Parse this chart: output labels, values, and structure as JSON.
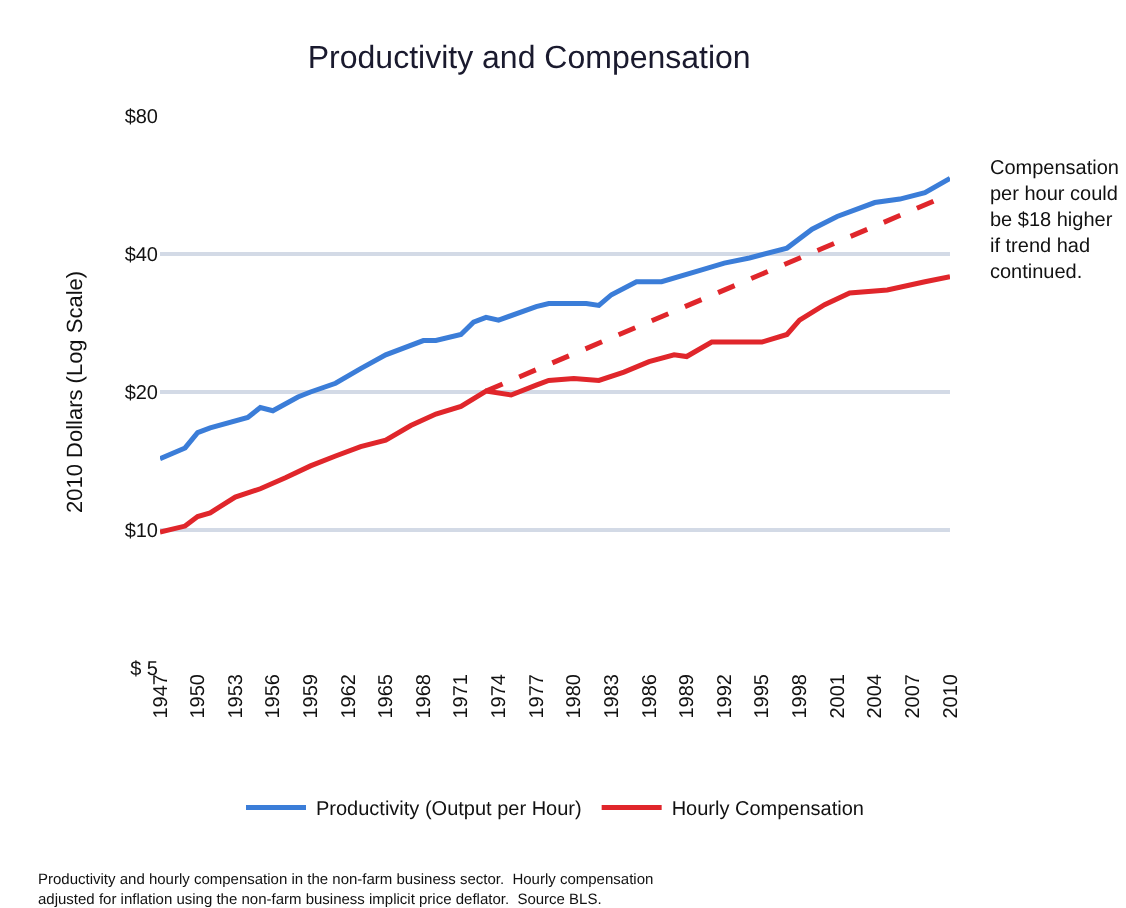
{
  "chart_data": {
    "type": "line",
    "title": "Productivity and Compensation",
    "ylabel": "2010 Dollars (Log Scale)",
    "log": "y",
    "grid": "y",
    "legend": "bottom",
    "line_style": "solid",
    "marker": "none",
    "xlim": [
      1947,
      2010
    ],
    "xticks": [
      1947,
      1950,
      1953,
      1956,
      1959,
      1962,
      1965,
      1968,
      1971,
      1974,
      1977,
      1980,
      1983,
      1986,
      1989,
      1992,
      1995,
      1998,
      2001,
      2004,
      2007,
      2010
    ],
    "ylim": [
      5,
      80
    ],
    "yticks": [
      {
        "value": 5,
        "label": "$ 5"
      },
      {
        "value": 10,
        "label": "$10"
      },
      {
        "value": 20,
        "label": "$20"
      },
      {
        "value": 40,
        "label": "$40"
      },
      {
        "value": 80,
        "label": "$80"
      }
    ],
    "series": [
      {
        "name": "Productivity (Output per Hour)",
        "color": "#3b7dd8",
        "x": [
          1947,
          1949,
          1950,
          1951,
          1954,
          1955,
          1956,
          1958,
          1959,
          1961,
          1963,
          1965,
          1968,
          1969,
          1971,
          1972,
          1973,
          1974,
          1977,
          1978,
          1980,
          1981,
          1982,
          1983,
          1985,
          1987,
          1990,
          1992,
          1994,
          1997,
          1999,
          2001,
          2004,
          2006,
          2008,
          2010
        ],
        "values": [
          14.3,
          15.1,
          16.3,
          16.7,
          17.6,
          18.5,
          18.2,
          19.5,
          20.0,
          20.9,
          22.5,
          24.1,
          25.9,
          25.9,
          26.7,
          28.4,
          29.1,
          28.7,
          30.7,
          31.2,
          31.2,
          31.2,
          30.9,
          32.6,
          34.8,
          34.8,
          36.8,
          38.2,
          39.2,
          41.2,
          45.3,
          48.3,
          51.8,
          52.7,
          54.4,
          58.5
        ]
      },
      {
        "name": "Hourly Compensation",
        "color": "#e0262b",
        "x": [
          1947,
          1949,
          1950,
          1951,
          1953,
          1955,
          1957,
          1959,
          1961,
          1963,
          1965,
          1967,
          1969,
          1971,
          1973,
          1975,
          1977,
          1978,
          1980,
          1982,
          1984,
          1986,
          1988,
          1989,
          1991,
          1995,
          1997,
          1998,
          2000,
          2002,
          2005,
          2008,
          2010
        ],
        "values": [
          9.9,
          10.2,
          10.7,
          10.9,
          11.8,
          12.3,
          13.0,
          13.8,
          14.5,
          15.2,
          15.7,
          16.9,
          17.9,
          18.6,
          20.1,
          19.7,
          20.7,
          21.2,
          21.4,
          21.2,
          22.1,
          23.3,
          24.1,
          23.9,
          25.7,
          25.7,
          26.7,
          28.7,
          31.0,
          32.9,
          33.4,
          34.8,
          35.7
        ]
      },
      {
        "color": "#e0262b",
        "line_style": "dashed",
        "x": [
          1973,
          2010
        ],
        "values": [
          20.1,
          54.0
        ]
      }
    ],
    "annotations": [
      "Compensation per hour could be $18 higher if trend had continued.",
      "Productivity and hourly compensation in the non-farm business sector.  Hourly compensation adjusted for inflation using the non-farm business implicit price deflator.  Source BLS."
    ]
  }
}
